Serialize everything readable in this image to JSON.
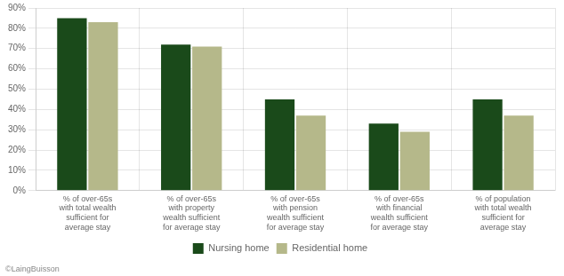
{
  "chart_data": {
    "type": "bar",
    "categories": [
      "% of over-65s\nwith total wealth\nsufficient for\naverage stay",
      "% of over-65s\nwith property\nwealth sufficient\nfor average stay",
      "% of over-65s\nwith pension\nwealth sufficient\nfor average stay",
      "% of over-65s\nwith financial\nwealth sufficient\nfor average stay",
      "% of population\nwith total wealth\nsufficient for\naverage stay"
    ],
    "series": [
      {
        "name": "Nursing home",
        "color": "#1a4a1a",
        "values": [
          85,
          72,
          45,
          33,
          45
        ]
      },
      {
        "name": "Residential home",
        "color": "#b5b88a",
        "values": [
          83,
          71,
          37,
          29,
          37
        ]
      }
    ],
    "ylim": [
      0,
      90
    ],
    "yticks": [
      {
        "value": 0,
        "label": "0%"
      },
      {
        "value": 10,
        "label": "10%"
      },
      {
        "value": 20,
        "label": "20%"
      },
      {
        "value": 30,
        "label": "30%"
      },
      {
        "value": 40,
        "label": "40%"
      },
      {
        "value": 50,
        "label": "50%"
      },
      {
        "value": 60,
        "label": "60%"
      },
      {
        "value": 70,
        "label": "70%"
      },
      {
        "value": 80,
        "label": "80%"
      },
      {
        "value": 90,
        "label": "90%"
      }
    ],
    "grid": true,
    "legend": "bottom",
    "annotations": [
      "©LaingBuisson"
    ]
  }
}
